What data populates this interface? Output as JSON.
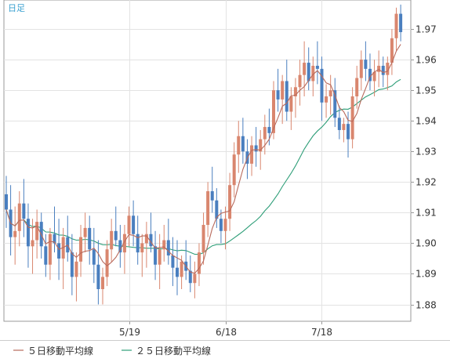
{
  "chart_data": {
    "type": "candlestick",
    "period_label": "日足",
    "y_ticks": [
      1.88,
      1.89,
      1.9,
      1.91,
      1.92,
      1.93,
      1.94,
      1.95,
      1.96,
      1.97
    ],
    "ylim": [
      1.8745,
      1.9795
    ],
    "grid": true,
    "x_ticks": [
      {
        "label": "5/19",
        "index": 28
      },
      {
        "label": "6/18",
        "index": 50
      },
      {
        "label": "7/18",
        "index": 72
      }
    ],
    "up_color": "#d9866e",
    "down_color": "#4a7fbf",
    "legend": [
      {
        "label": "５日移動平均線",
        "color": "#b86a5c"
      },
      {
        "label": "２５日移動平均線",
        "color": "#2e9e78"
      }
    ],
    "candles": [
      [
        1.916,
        1.922,
        1.905,
        1.911
      ],
      [
        1.911,
        1.919,
        1.896,
        1.902
      ],
      [
        1.902,
        1.912,
        1.893,
        1.904
      ],
      [
        1.904,
        1.917,
        1.899,
        1.913
      ],
      [
        1.913,
        1.921,
        1.902,
        1.908
      ],
      [
        1.908,
        1.913,
        1.892,
        1.899
      ],
      [
        1.899,
        1.908,
        1.89,
        1.901
      ],
      [
        1.901,
        1.911,
        1.895,
        1.907
      ],
      [
        1.907,
        1.91,
        1.895,
        1.899
      ],
      [
        1.899,
        1.903,
        1.889,
        1.893
      ],
      [
        1.893,
        1.905,
        1.888,
        1.903
      ],
      [
        1.903,
        1.912,
        1.897,
        1.9
      ],
      [
        1.9,
        1.908,
        1.888,
        1.895
      ],
      [
        1.895,
        1.905,
        1.885,
        1.902
      ],
      [
        1.902,
        1.909,
        1.894,
        1.897
      ],
      [
        1.897,
        1.903,
        1.883,
        1.889
      ],
      [
        1.889,
        1.897,
        1.881,
        1.894
      ],
      [
        1.894,
        1.906,
        1.889,
        1.902
      ],
      [
        1.902,
        1.91,
        1.897,
        1.905
      ],
      [
        1.905,
        1.909,
        1.893,
        1.898
      ],
      [
        1.898,
        1.905,
        1.887,
        1.893
      ],
      [
        1.893,
        1.901,
        1.88,
        1.885
      ],
      [
        1.885,
        1.892,
        1.88,
        1.889
      ],
      [
        1.889,
        1.901,
        1.886,
        1.898
      ],
      [
        1.898,
        1.908,
        1.894,
        1.904
      ],
      [
        1.904,
        1.912,
        1.899,
        1.901
      ],
      [
        1.901,
        1.906,
        1.892,
        1.897
      ],
      [
        1.897,
        1.906,
        1.89,
        1.903
      ],
      [
        1.903,
        1.912,
        1.899,
        1.909
      ],
      [
        1.909,
        1.914,
        1.899,
        1.903
      ],
      [
        1.903,
        1.909,
        1.893,
        1.897
      ],
      [
        1.897,
        1.903,
        1.889,
        1.9
      ],
      [
        1.9,
        1.907,
        1.892,
        1.903
      ],
      [
        1.903,
        1.91,
        1.897,
        1.899
      ],
      [
        1.899,
        1.904,
        1.888,
        1.893
      ],
      [
        1.893,
        1.903,
        1.885,
        1.898
      ],
      [
        1.898,
        1.906,
        1.894,
        1.901
      ],
      [
        1.901,
        1.908,
        1.893,
        1.896
      ],
      [
        1.896,
        1.902,
        1.886,
        1.892
      ],
      [
        1.892,
        1.901,
        1.883,
        1.889
      ],
      [
        1.889,
        1.896,
        1.885,
        1.894
      ],
      [
        1.894,
        1.901,
        1.888,
        1.891
      ],
      [
        1.891,
        1.896,
        1.884,
        1.887
      ],
      [
        1.887,
        1.894,
        1.882,
        1.89
      ],
      [
        1.89,
        1.9,
        1.886,
        1.897
      ],
      [
        1.897,
        1.91,
        1.893,
        1.906
      ],
      [
        1.906,
        1.92,
        1.902,
        1.917
      ],
      [
        1.917,
        1.925,
        1.91,
        1.914
      ],
      [
        1.914,
        1.918,
        1.905,
        1.908
      ],
      [
        1.908,
        1.911,
        1.9,
        1.904
      ],
      [
        1.904,
        1.912,
        1.898,
        1.908
      ],
      [
        1.908,
        1.923,
        1.904,
        1.919
      ],
      [
        1.919,
        1.933,
        1.915,
        1.929
      ],
      [
        1.929,
        1.94,
        1.923,
        1.935
      ],
      [
        1.935,
        1.941,
        1.926,
        1.93
      ],
      [
        1.93,
        1.934,
        1.921,
        1.926
      ],
      [
        1.926,
        1.935,
        1.922,
        1.932
      ],
      [
        1.932,
        1.938,
        1.925,
        1.93
      ],
      [
        1.93,
        1.937,
        1.924,
        1.934
      ],
      [
        1.934,
        1.942,
        1.929,
        1.938
      ],
      [
        1.938,
        1.944,
        1.932,
        1.936
      ],
      [
        1.936,
        1.953,
        1.934,
        1.95
      ],
      [
        1.95,
        1.957,
        1.943,
        1.947
      ],
      [
        1.947,
        1.955,
        1.939,
        1.953
      ],
      [
        1.953,
        1.96,
        1.94,
        1.943
      ],
      [
        1.943,
        1.951,
        1.937,
        1.948
      ],
      [
        1.948,
        1.954,
        1.941,
        1.951
      ],
      [
        1.951,
        1.96,
        1.945,
        1.955
      ],
      [
        1.955,
        1.966,
        1.948,
        1.959
      ],
      [
        1.959,
        1.964,
        1.95,
        1.953
      ],
      [
        1.953,
        1.961,
        1.948,
        1.958
      ],
      [
        1.958,
        1.966,
        1.952,
        1.957
      ],
      [
        1.957,
        1.961,
        1.94,
        1.946
      ],
      [
        1.946,
        1.952,
        1.941,
        1.948
      ],
      [
        1.948,
        1.955,
        1.942,
        1.95
      ],
      [
        1.95,
        1.954,
        1.938,
        1.941
      ],
      [
        1.941,
        1.945,
        1.934,
        1.937
      ],
      [
        1.937,
        1.941,
        1.933,
        1.939
      ],
      [
        1.939,
        1.943,
        1.928,
        1.934
      ],
      [
        1.934,
        1.951,
        1.931,
        1.948
      ],
      [
        1.948,
        1.958,
        1.944,
        1.954
      ],
      [
        1.954,
        1.963,
        1.95,
        1.96
      ],
      [
        1.96,
        1.966,
        1.953,
        1.957
      ],
      [
        1.957,
        1.962,
        1.95,
        1.953
      ],
      [
        1.953,
        1.96,
        1.948,
        1.956
      ],
      [
        1.956,
        1.963,
        1.951,
        1.958
      ],
      [
        1.958,
        1.961,
        1.951,
        1.955
      ],
      [
        1.955,
        1.961,
        1.95,
        1.959
      ],
      [
        1.959,
        1.97,
        1.955,
        1.967
      ],
      [
        1.967,
        1.977,
        1.963,
        1.975
      ],
      [
        1.975,
        1.978,
        1.966,
        1.969
      ]
    ]
  }
}
